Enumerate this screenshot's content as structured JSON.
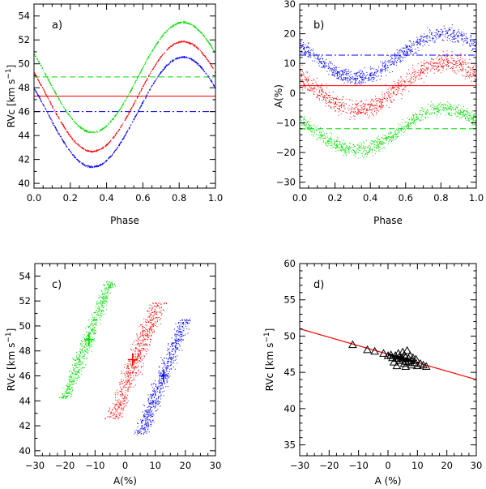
{
  "chart_data": [
    {
      "id": "a",
      "type": "scatter",
      "panel_label": "a)",
      "xlabel": "Phase",
      "ylabel": "RVc  [km s",
      "ylabel_sup": "−1",
      "ylabel_end": "]",
      "xlim": [
        0.0,
        1.0
      ],
      "ylim": [
        39.6,
        55.0
      ],
      "xticks": [
        0.0,
        0.2,
        0.4,
        0.6,
        0.8,
        1.0
      ],
      "xtick_labels": [
        "0.0",
        "0.2",
        "0.4",
        "0.6",
        "0.8",
        "1.0"
      ],
      "yticks": [
        40,
        42,
        44,
        46,
        48,
        50,
        52,
        54
      ],
      "ytick_labels": [
        "40",
        "42",
        "44",
        "46",
        "48",
        "50",
        "52",
        "54"
      ],
      "series": [
        {
          "name": "green",
          "color": "#00dd00",
          "kind": "sine",
          "mean": 48.9,
          "amp": 4.6,
          "peak_phase": 0.82
        },
        {
          "name": "red",
          "color": "#ff0000",
          "kind": "sine",
          "mean": 47.3,
          "amp": 4.6,
          "peak_phase": 0.82
        },
        {
          "name": "blue",
          "color": "#0000ff",
          "kind": "sine",
          "mean": 46.0,
          "amp": 4.6,
          "peak_phase": 0.82
        }
      ],
      "hlines": [
        {
          "y": 48.9,
          "color": "#00dd00",
          "style": "dashed"
        },
        {
          "y": 47.3,
          "color": "#ff0000",
          "style": "solid"
        },
        {
          "y": 46.0,
          "color": "#0000ff",
          "style": "dashdot"
        }
      ]
    },
    {
      "id": "b",
      "type": "scatter",
      "panel_label": "b)",
      "xlabel": "Phase",
      "ylabel": "A(%)",
      "xlim": [
        0.0,
        1.0
      ],
      "ylim": [
        -32,
        30
      ],
      "xticks": [
        0.0,
        0.2,
        0.4,
        0.6,
        0.8,
        1.0
      ],
      "xtick_labels": [
        "0.0",
        "0.2",
        "0.4",
        "0.6",
        "0.8",
        "1.0"
      ],
      "yticks": [
        -30,
        -20,
        -10,
        0,
        10,
        20,
        30
      ],
      "ytick_labels": [
        "−30",
        "−20",
        "−10",
        "0",
        "10",
        "20",
        "30"
      ],
      "series": [
        {
          "name": "blue",
          "color": "#0000ff",
          "kind": "sine",
          "mean": 12.8,
          "amp": 7.5,
          "peak_phase": 0.82,
          "scatter": 2.2
        },
        {
          "name": "red",
          "color": "#ff0000",
          "kind": "sine",
          "mean": 2.5,
          "amp": 8.0,
          "peak_phase": 0.82,
          "scatter": 2.8
        },
        {
          "name": "green",
          "color": "#00dd00",
          "kind": "sine",
          "mean": -12.0,
          "amp": 7.0,
          "peak_phase": 0.82,
          "scatter": 2.0
        }
      ],
      "hlines": [
        {
          "y": 12.8,
          "color": "#0000ff",
          "style": "dashdot"
        },
        {
          "y": 2.5,
          "color": "#ff0000",
          "style": "solid"
        },
        {
          "y": -12.0,
          "color": "#00dd00",
          "style": "dashed"
        }
      ]
    },
    {
      "id": "c",
      "type": "scatter",
      "panel_label": "c)",
      "xlabel": "A(%)",
      "ylabel": "RVc  [km s",
      "ylabel_sup": "−1",
      "ylabel_end": "]",
      "xlim": [
        -30,
        30
      ],
      "ylim": [
        39.6,
        55.0
      ],
      "xticks": [
        -30,
        -20,
        -10,
        0,
        10,
        20,
        30
      ],
      "xtick_labels": [
        "−30",
        "−20",
        "−10",
        "0",
        "10",
        "20",
        "30"
      ],
      "yticks": [
        40,
        42,
        44,
        46,
        48,
        50,
        52,
        54
      ],
      "ytick_labels": [
        "40",
        "42",
        "44",
        "46",
        "48",
        "50",
        "52",
        "54"
      ],
      "series": [
        {
          "name": "green",
          "color": "#00dd00",
          "kind": "band",
          "x_range": [
            -20,
            -5
          ],
          "y_range": [
            44.2,
            53.6
          ],
          "width": 2.5
        },
        {
          "name": "red",
          "color": "#ff0000",
          "kind": "band",
          "x_range": [
            -4,
            11
          ],
          "y_range": [
            42.6,
            51.9
          ],
          "width": 3.5
        },
        {
          "name": "blue",
          "color": "#0000ff",
          "kind": "band",
          "x_range": [
            5,
            20
          ],
          "y_range": [
            41.3,
            50.6
          ],
          "width": 3.0
        }
      ],
      "crosses": [
        {
          "x": -12.0,
          "y": 48.9,
          "color": "#00dd00"
        },
        {
          "x": 2.5,
          "y": 47.3,
          "color": "#ff0000"
        },
        {
          "x": 12.8,
          "y": 46.0,
          "color": "#0000ff"
        }
      ]
    },
    {
      "id": "d",
      "type": "scatter",
      "panel_label": "d)",
      "xlabel": "A (%)",
      "ylabel": "RVc  [km s",
      "ylabel_sup": "−1",
      "ylabel_end": "]",
      "xlim": [
        -30,
        30
      ],
      "ylim": [
        33.5,
        60.0
      ],
      "xticks": [
        -30,
        -20,
        -10,
        0,
        10,
        20,
        30
      ],
      "xtick_labels": [
        "−30",
        "−20",
        "−10",
        "0",
        "10",
        "20",
        "30"
      ],
      "yticks": [
        35,
        40,
        45,
        50,
        55,
        60
      ],
      "ytick_labels": [
        "35",
        "40",
        "45",
        "50",
        "55",
        "60"
      ],
      "points": [
        [
          -12,
          48.8
        ],
        [
          -7,
          48.1
        ],
        [
          -4.5,
          47.9
        ],
        [
          -1.5,
          47.6
        ],
        [
          0,
          47.3
        ],
        [
          1,
          47.4
        ],
        [
          1.5,
          47.0
        ],
        [
          2.5,
          47.3
        ],
        [
          3,
          46.9
        ],
        [
          3.5,
          47.6
        ],
        [
          4,
          46.6
        ],
        [
          4,
          47.2
        ],
        [
          4.5,
          47.0
        ],
        [
          5,
          47.8
        ],
        [
          5,
          46.8
        ],
        [
          5.5,
          46.2
        ],
        [
          6,
          47.1
        ],
        [
          6,
          46.5
        ],
        [
          6.5,
          48.0
        ],
        [
          7,
          46.9
        ],
        [
          7,
          46.4
        ],
        [
          7.5,
          47.3
        ],
        [
          8,
          46.6
        ],
        [
          8,
          46.0
        ],
        [
          8.5,
          47.0
        ],
        [
          9,
          46.3
        ],
        [
          10,
          45.9
        ],
        [
          11,
          46.2
        ],
        [
          12,
          46.0
        ],
        [
          13,
          45.8
        ],
        [
          2,
          46.4
        ],
        [
          3,
          45.9
        ],
        [
          6,
          45.8
        ],
        [
          5.5,
          47.4
        ],
        [
          9.5,
          46.8
        ]
      ],
      "fit_line": {
        "x0": -30,
        "y0": 51.0,
        "x1": 30,
        "y1": 44.0,
        "color": "#ff0000"
      },
      "fit_thick": {
        "x0": 0,
        "y0": 47.5,
        "x1": 9,
        "y1": 46.4
      }
    }
  ]
}
